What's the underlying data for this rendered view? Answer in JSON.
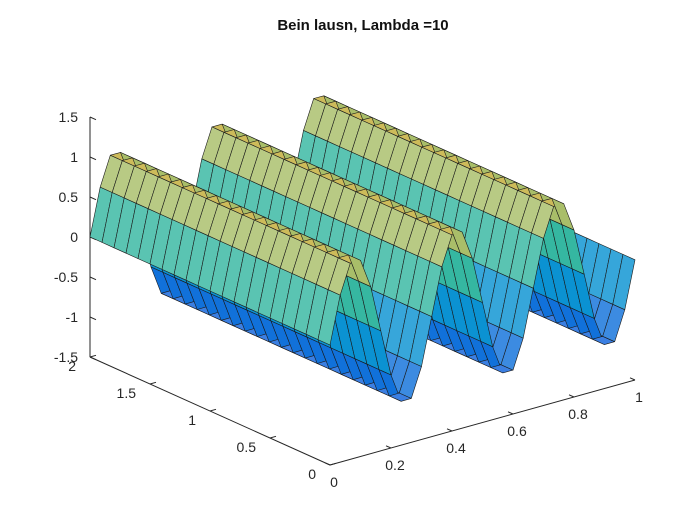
{
  "chart_data": {
    "type": "surface",
    "title": "Bein lausn, Lambda =10",
    "xlabel": "",
    "ylabel": "",
    "zlabel": "",
    "x_ticks": [
      "0",
      "0.2",
      "0.4",
      "0.6",
      "0.8",
      "1"
    ],
    "y_ticks": [
      "0",
      "0.5",
      "1",
      "1.5",
      "2"
    ],
    "z_ticks": [
      "-1.5",
      "-1",
      "-0.5",
      "0",
      "0.5",
      "1",
      "1.5"
    ],
    "xlim": [
      0,
      1
    ],
    "ylim": [
      0,
      2
    ],
    "zlim": [
      -1.5,
      1.5
    ],
    "grid": false,
    "colormap": "parula",
    "function": "z = sin(2*pi*x/lambda_x), constant in y",
    "x_wavelength": 0.3333,
    "y_range": [
      0,
      2
    ],
    "mesh_resolution": {
      "x": 30,
      "y": 20
    },
    "colors": {
      "axis": "#262626",
      "edge": "#1a1a1a",
      "background": "#ffffff"
    }
  }
}
